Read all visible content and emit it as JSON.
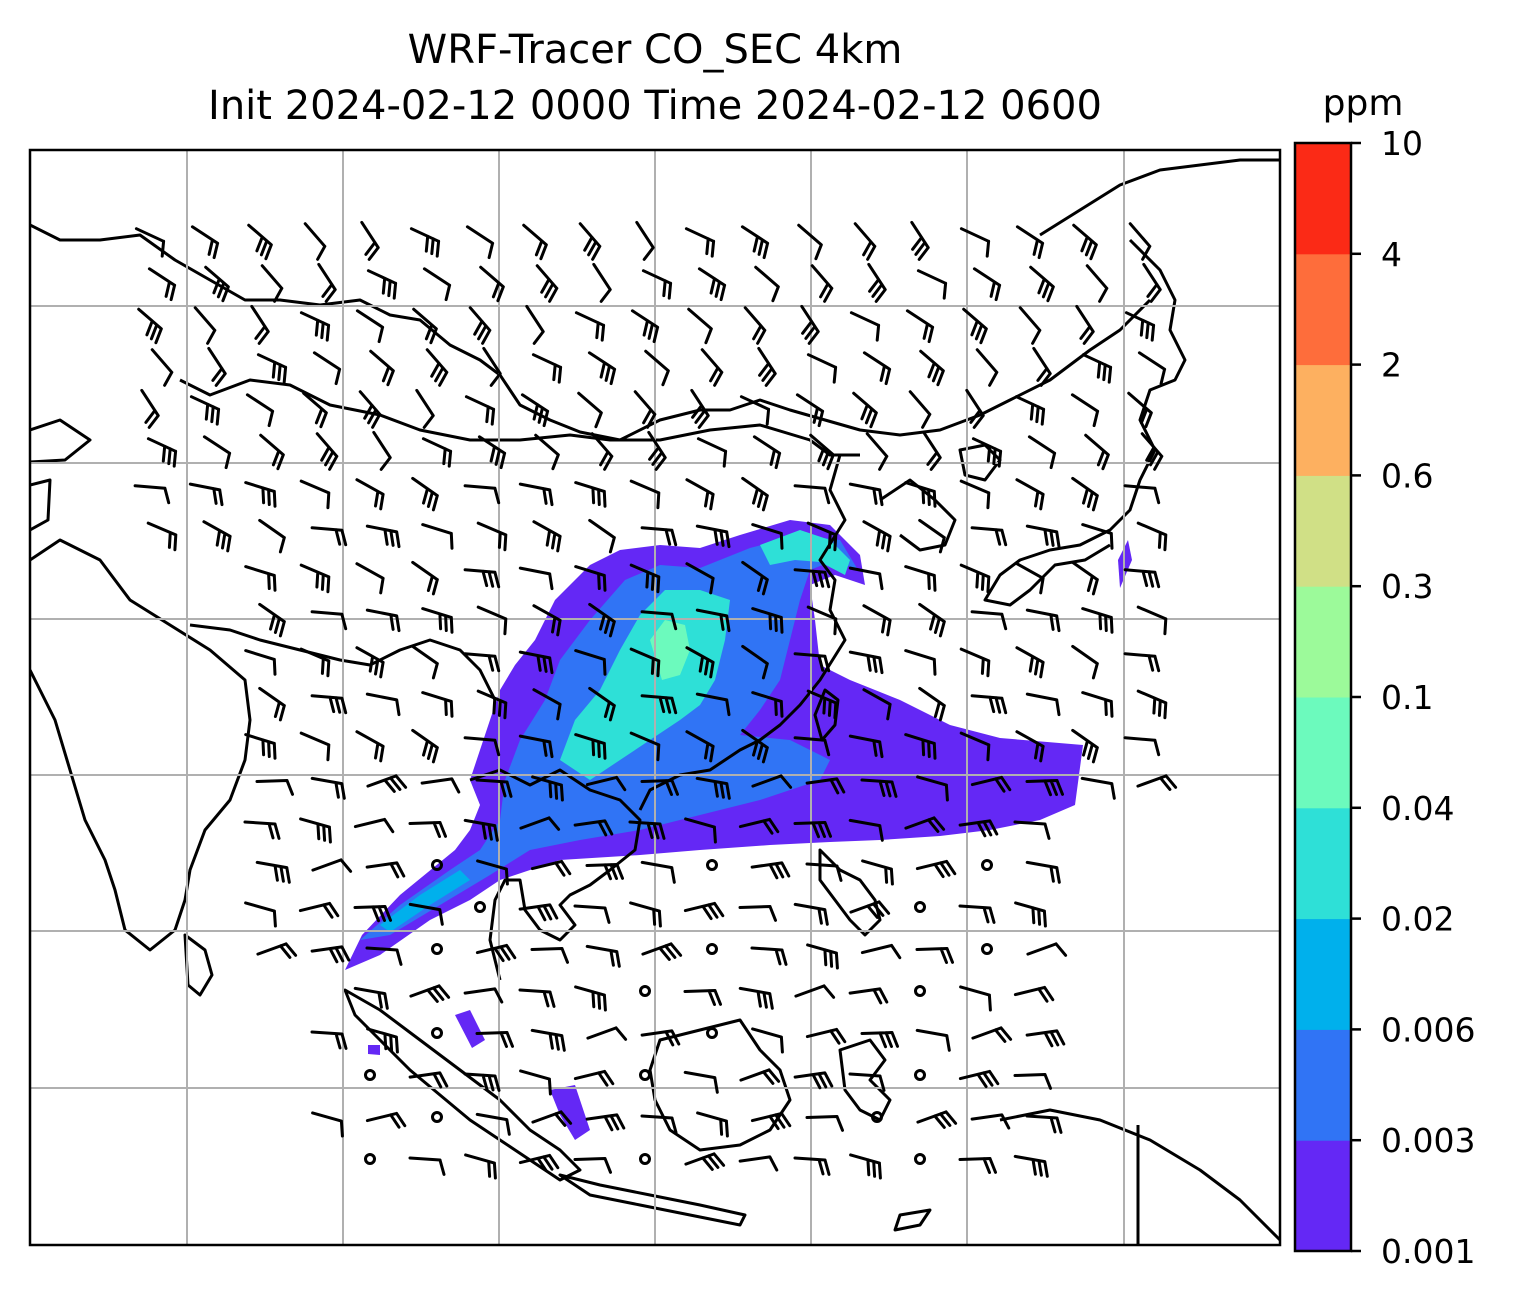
{
  "title": {
    "line1": "WRF-Tracer CO_SEC 4km",
    "line2": "Init 2024-02-12 0000 Time 2024-02-12 0600"
  },
  "colorbar": {
    "unit": "ppm",
    "levels": [
      "0.001",
      "0.003",
      "0.006",
      "0.02",
      "0.04",
      "0.1",
      "0.3",
      "0.6",
      "2",
      "4",
      "10"
    ],
    "colors": [
      "#6428f5",
      "#3074f5",
      "#00b0ec",
      "#2ee0d7",
      "#6cfabd",
      "#9cfa9a",
      "#d0e086",
      "#fdb060",
      "#fe6d3b",
      "#fb2a16"
    ]
  },
  "map": {
    "variable": "CO_SEC",
    "field_colors": {
      "low": "#6428f5",
      "mid": "#3074f5",
      "high": "#2ee0d7",
      "peak": "#6cfabd"
    },
    "gridlines": true,
    "coastlines": true,
    "wind_barbs": true
  }
}
